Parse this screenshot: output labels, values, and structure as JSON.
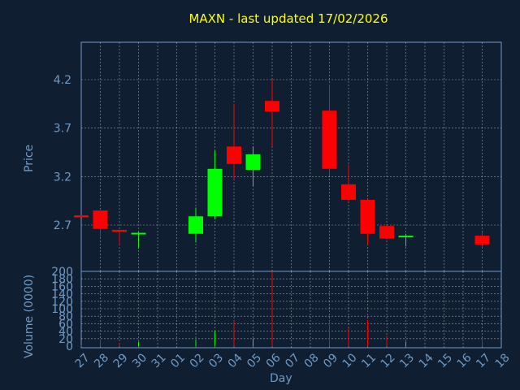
{
  "chart_data": [
    {
      "type": "candlestick",
      "title": "MAXN - last updated 17/02/2026",
      "ylabel": "Price",
      "xlabel": "",
      "ylim": [
        2.35,
        4.75
      ],
      "yticks": [
        "4.2",
        "3.7",
        "3.2",
        "2.7"
      ],
      "grid": true,
      "colors": {
        "up": "#00ff00",
        "down": "#ff0000",
        "background": "#0f1f31",
        "axis": "#6f9ac6",
        "title": "#ffff00"
      },
      "categories": [
        "27",
        "28",
        "29",
        "30",
        "31",
        "01",
        "02",
        "03",
        "04",
        "05",
        "06",
        "07",
        "08",
        "09",
        "10",
        "11",
        "12",
        "13",
        "14",
        "15",
        "16",
        "17",
        "18"
      ],
      "candles": [
        {
          "x": "27",
          "open": 2.8,
          "high": 2.8,
          "low": 2.78,
          "close": 2.78
        },
        {
          "x": "28",
          "open": 2.85,
          "high": 2.85,
          "low": 2.58,
          "close": 2.66
        },
        {
          "x": "29",
          "open": 2.65,
          "high": 2.65,
          "low": 2.5,
          "close": 2.63
        },
        {
          "x": "30",
          "open": 2.61,
          "high": 2.63,
          "low": 2.46,
          "close": 2.62
        },
        {
          "x": "02",
          "open": 2.61,
          "high": 2.88,
          "low": 2.52,
          "close": 2.79
        },
        {
          "x": "03",
          "open": 2.79,
          "high": 3.47,
          "low": 2.76,
          "close": 3.28
        },
        {
          "x": "04",
          "open": 3.51,
          "high": 3.95,
          "low": 3.17,
          "close": 3.33
        },
        {
          "x": "05",
          "open": 3.27,
          "high": 3.51,
          "low": 3.1,
          "close": 3.43
        },
        {
          "x": "06",
          "open": 3.98,
          "high": 4.2,
          "low": 3.51,
          "close": 3.87
        },
        {
          "x": "09",
          "open": 3.88,
          "high": 4.15,
          "low": 3.21,
          "close": 3.28
        },
        {
          "x": "10",
          "open": 3.12,
          "high": 3.32,
          "low": 2.94,
          "close": 2.96
        },
        {
          "x": "11",
          "open": 2.96,
          "high": 2.96,
          "low": 2.5,
          "close": 2.61
        },
        {
          "x": "12",
          "open": 2.69,
          "high": 2.69,
          "low": 2.55,
          "close": 2.56
        },
        {
          "x": "13",
          "open": 2.58,
          "high": 2.61,
          "low": 2.48,
          "close": 2.59
        },
        {
          "x": "17",
          "open": 2.59,
          "high": 2.63,
          "low": 2.47,
          "close": 2.5
        }
      ]
    },
    {
      "type": "bar",
      "ylabel": "Volume (0000)",
      "xlabel": "Day",
      "ylim": [
        0,
        200
      ],
      "yticks": [
        "200",
        "180",
        "160",
        "140",
        "120",
        "100",
        "80",
        "60",
        "40",
        "20",
        "0"
      ],
      "categories": [
        "27",
        "28",
        "29",
        "30",
        "31",
        "01",
        "02",
        "03",
        "04",
        "05",
        "06",
        "07",
        "08",
        "09",
        "10",
        "11",
        "12",
        "13",
        "14",
        "15",
        "16",
        "17",
        "18"
      ],
      "bars": [
        {
          "x": "27",
          "value": 2,
          "dir": "down"
        },
        {
          "x": "28",
          "value": 18,
          "dir": "down"
        },
        {
          "x": "29",
          "value": 8,
          "dir": "down"
        },
        {
          "x": "30",
          "value": 12,
          "dir": "up"
        },
        {
          "x": "02",
          "value": 18,
          "dir": "up"
        },
        {
          "x": "03",
          "value": 42,
          "dir": "up"
        },
        {
          "x": "04",
          "value": 68,
          "dir": "down"
        },
        {
          "x": "05",
          "value": 20,
          "dir": "up"
        },
        {
          "x": "06",
          "value": 200,
          "dir": "down"
        },
        {
          "x": "09",
          "value": 68,
          "dir": "down"
        },
        {
          "x": "10",
          "value": 48,
          "dir": "down"
        },
        {
          "x": "11",
          "value": 70,
          "dir": "down"
        },
        {
          "x": "12",
          "value": 28,
          "dir": "down"
        },
        {
          "x": "13",
          "value": 12,
          "dir": "up"
        },
        {
          "x": "17",
          "value": 22,
          "dir": "down"
        }
      ]
    }
  ]
}
